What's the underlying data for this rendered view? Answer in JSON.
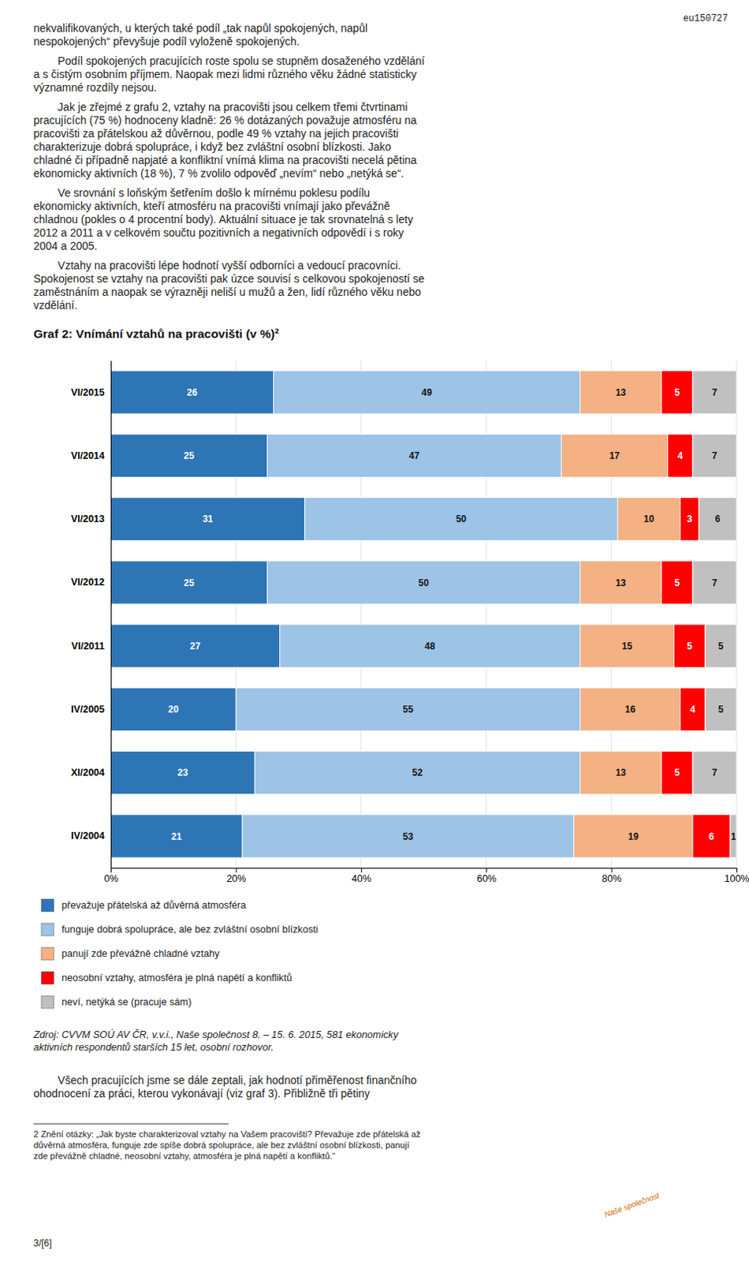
{
  "page": {
    "eu_label": "eu150727",
    "paragraphs": [
      [
        "nekvalifikovaných, u kterých také podíl „tak napůl spokojených, napůl",
        "nespokojených“ převyšuje podíl vyloženě spokojených."
      ],
      [
        "        Podíl spokojených pracujících roste spolu se stupněm dosaženého vzdělání",
        "a s čistým osobním příjmem. Naopak mezi lidmi různého věku žádné statisticky",
        "významné rozdíly nejsou."
      ],
      [
        "        Jak je zřejmé z grafu 2, vztahy na pracovišti jsou celkem třemi čtvrtinami",
        "pracujících (75 %) hodnoceny kladně: 26 % dotázaných považuje atmosféru na",
        "pracovišti za přátelskou až důvěrnou, podle 49 % vztahy na jejich pracovišti",
        "charakterizuje dobrá spolupráce, i když bez zvláštní osobní blízkosti. Jako",
        "chladné či případně napjaté a konfliktní vnímá klima na pracovišti necelá pětina",
        "ekonomicky aktivních (18 %), 7 % zvolilo odpověď „nevím“ nebo „netýká se“."
      ],
      [
        "        Ve srovnání s loňským šetřením došlo k mírnému poklesu podílu",
        "ekonomicky aktivních, kteří atmosféru na pracovišti vnímají jako převážně",
        "chladnou (pokles o 4 procentní body). Aktuální situace je tak srovnatelná s lety",
        "2012 a 2011 a v celkovém součtu pozitivních a negativních odpovědí i s roky",
        "2004 a 2005."
      ],
      [
        "        Vztahy na pracovišti lépe hodnotí vyšší odborníci a vedoucí pracovníci.",
        "Spokojenost se vztahy na pracovišti pak úzce souvisí s celkovou spokojeností se",
        "zaměstnáním a naopak se výrazněji neliší u mužů a žen, lidí různého věku nebo",
        "vzdělání."
      ]
    ],
    "source": [
      "Zdroj: CVVM SOÚ AV ČR, v.v.i., Naše společnost 8. – 15. 6. 2015, 581 ekonomicky",
      "aktivních respondentů starších 15 let, osobní rozhovor."
    ],
    "footer": [
      "        Všech pracujících jsme se dále zeptali, jak hodnotí přiměřenost finančního",
      "ohodnocení za práci, kterou vykonávají (viz graf 3). Přibližně tři pětiny"
    ],
    "footnote": [
      "2 Znění otázky: „Jak byste charakterizoval vztahy na Vašem pracovišti? Převažuje zde přátelská až",
      "důvěrná atmosféra, funguje zde spíše dobrá spolupráce, ale bez zvláštní osobní blízkosti, panují",
      "zde převážně chladné, neosobní vztahy, atmosféra je plná napětí a konfliktů.“"
    ],
    "page_label": "3/[6]",
    "logo": "Naše společnost"
  },
  "chart_data": {
    "type": "bar",
    "orientation": "horizontal",
    "stacked": true,
    "data_labels": true,
    "grid": true,
    "legend": "bottom",
    "title": "Graf 2: Vnímání vztahů na pracovišti (v %)²",
    "categories": [
      "VI/2015",
      "VI/2014",
      "VI/2013",
      "VI/2012",
      "VI/2011",
      "IV/2005",
      "XI/2004",
      "IV/2004"
    ],
    "series": [
      {
        "name": "převažuje přátelská až důvěrná atmosféra",
        "color": "#2E75B6",
        "values": [
          26,
          25,
          31,
          25,
          27,
          20,
          23,
          21
        ]
      },
      {
        "name": "funguje dobrá spolupráce, ale bez zvláštní osobní blízkosti",
        "color": "#9DC3E6",
        "values": [
          49,
          47,
          50,
          50,
          48,
          55,
          52,
          53
        ]
      },
      {
        "name": "panují zde převážně chladné vztahy",
        "color": "#F4B183",
        "values": [
          13,
          17,
          10,
          13,
          15,
          16,
          13,
          19
        ]
      },
      {
        "name": "neosobní vztahy, atmosféra je plná napětí a konfliktů",
        "color": "#FF0000",
        "values": [
          5,
          4,
          3,
          5,
          5,
          4,
          5,
          6
        ]
      },
      {
        "name": "neví, netýká se (pracuje sám)",
        "color": "#C0C0C0",
        "values": [
          7,
          7,
          6,
          7,
          5,
          5,
          7,
          1
        ]
      }
    ],
    "xlim": [
      0,
      100
    ],
    "xticks": [
      {
        "value": 0,
        "label": "0%"
      },
      {
        "value": 20,
        "label": "20%"
      },
      {
        "value": 40,
        "label": "40%"
      },
      {
        "value": 60,
        "label": "60%"
      },
      {
        "value": 80,
        "label": "80%"
      },
      {
        "value": 100,
        "label": "100%"
      }
    ]
  }
}
